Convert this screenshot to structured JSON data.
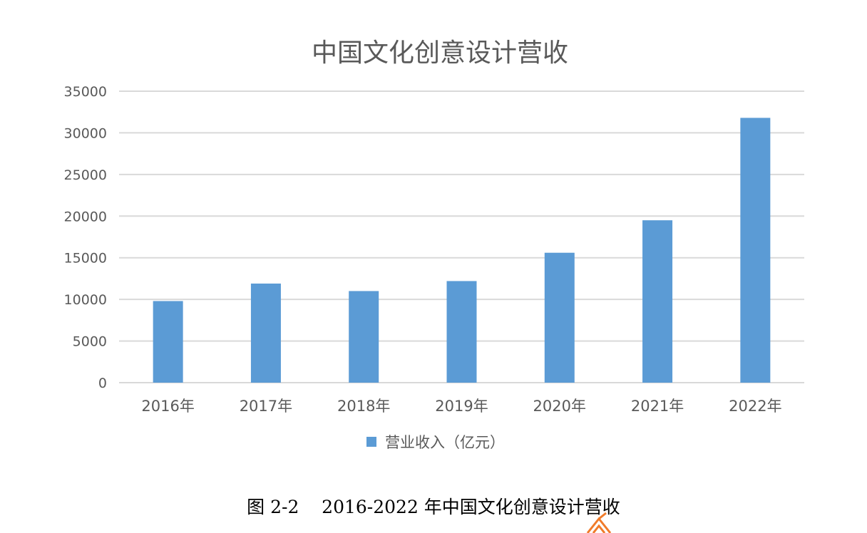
{
  "chart_data": {
    "type": "bar",
    "title": "中国文化创意设计营收",
    "categories": [
      "2016年",
      "2017年",
      "2018年",
      "2019年",
      "2020年",
      "2021年",
      "2022年"
    ],
    "series": [
      {
        "name": "营业收入（亿元）",
        "values": [
          9800,
          11900,
          11000,
          12200,
          15600,
          19500,
          31800
        ]
      }
    ],
    "ylim": [
      0,
      35000
    ],
    "yticks": [
      0,
      5000,
      10000,
      15000,
      20000,
      25000,
      30000,
      35000
    ],
    "grid": true,
    "legend": "bottom",
    "colors": {
      "bar": "#5b9bd5",
      "grid": "#d9d9d9",
      "text": "#595959"
    }
  },
  "caption": "图 2-2    2016-2022 年中国文化创意设计营收",
  "watermark_icon": "logo-icon"
}
